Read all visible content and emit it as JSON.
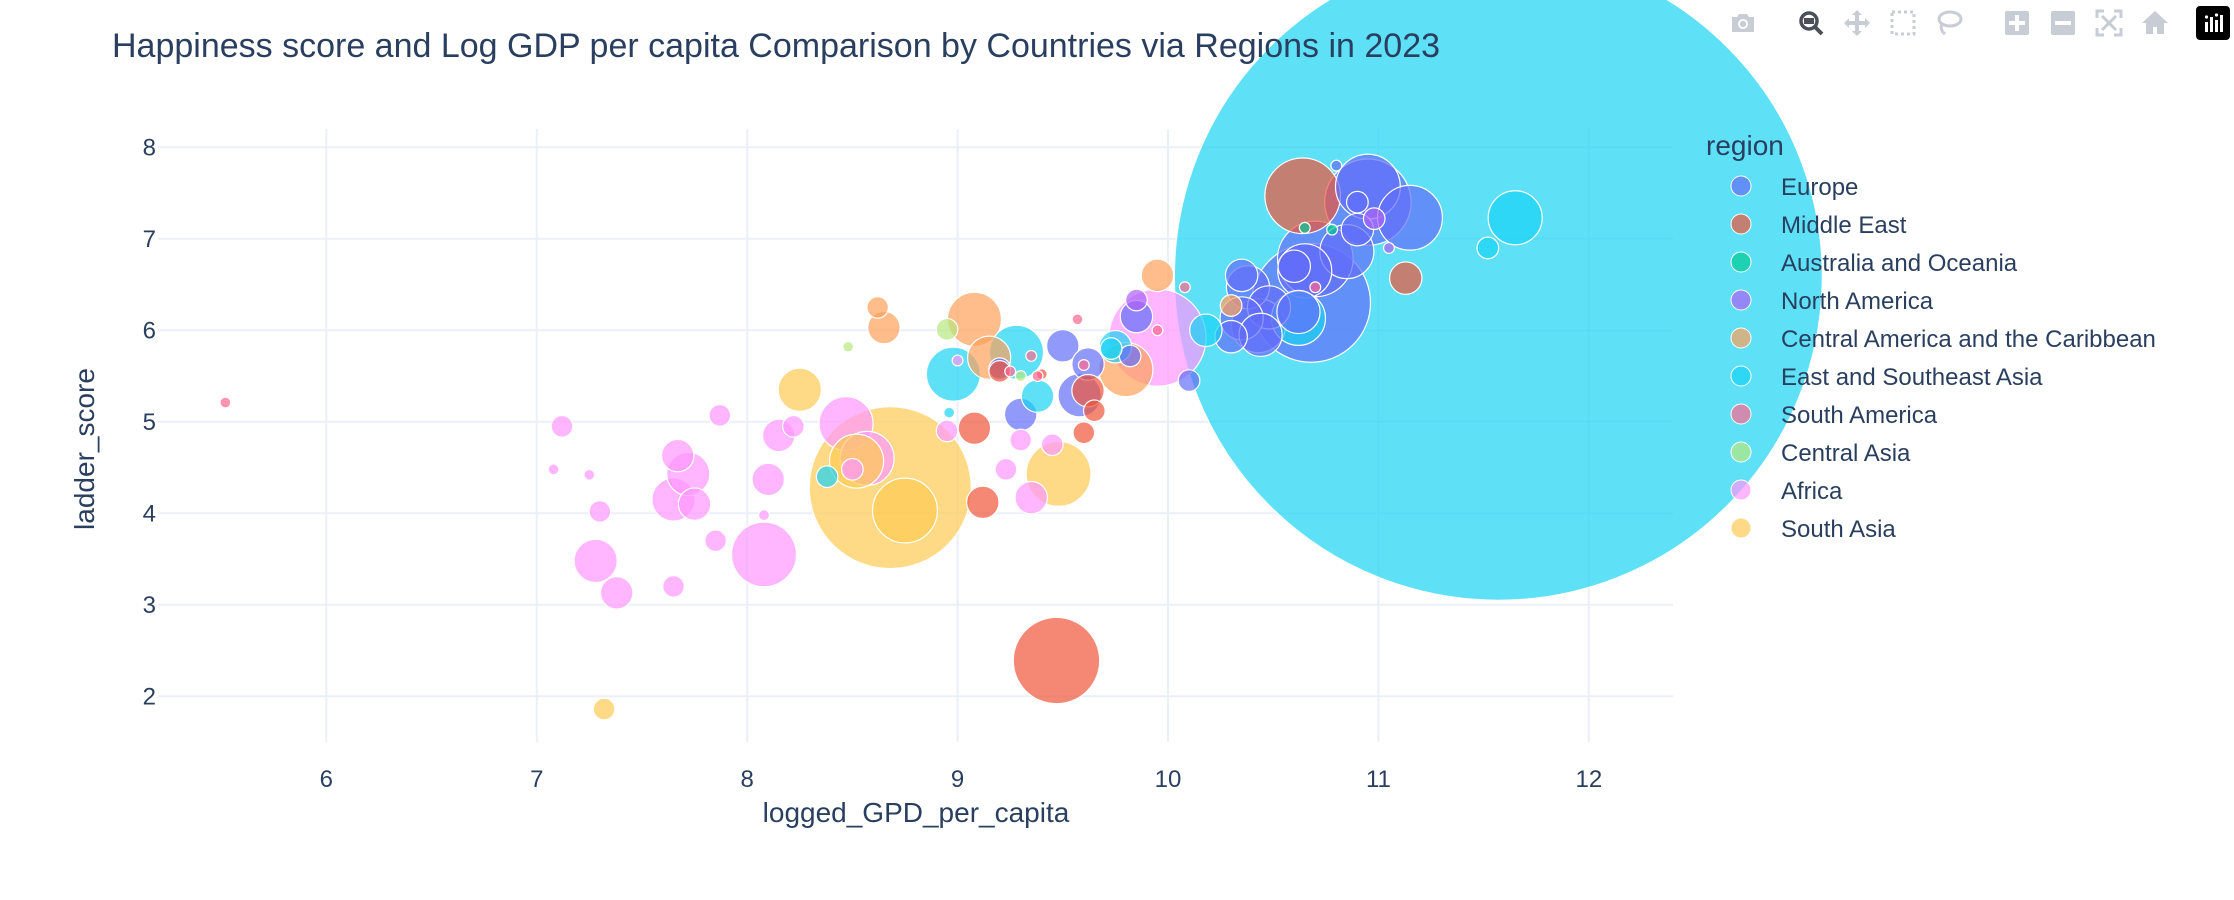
{
  "modebar": {
    "buttons": [
      {
        "name": "camera-icon",
        "active": false
      },
      {
        "name": "zoom-icon",
        "active": true
      },
      {
        "name": "pan-icon",
        "active": false
      },
      {
        "name": "box-select-icon",
        "active": false
      },
      {
        "name": "lasso-select-icon",
        "active": false
      },
      {
        "name": "zoom-in-icon",
        "active": false
      },
      {
        "name": "zoom-out-icon",
        "active": false
      },
      {
        "name": "autoscale-icon",
        "active": false
      },
      {
        "name": "reset-axes-icon",
        "active": false
      },
      {
        "name": "plotly-logo-icon",
        "active": false
      }
    ]
  },
  "chart_data": {
    "type": "scatter",
    "title": "Happiness score and Log GDP per capita Comparison by Countries via Regions in 2023",
    "xlabel": "logged_GPD_per_capita",
    "ylabel": "ladder_score",
    "xlim": [
      5.2,
      12.4
    ],
    "ylim": [
      1.5,
      8.2
    ],
    "xticks": [
      6,
      7,
      8,
      9,
      10,
      11,
      12
    ],
    "yticks": [
      2,
      3,
      4,
      5,
      6,
      7,
      8
    ],
    "grid": true,
    "legend": {
      "title": "region",
      "placement": "right"
    },
    "marker_opacity": 0.7,
    "series": [
      {
        "name": "Europe",
        "color": "#636efa",
        "points": [
          [
            10.8,
            7.8
          ],
          [
            10.95,
            7.57
          ],
          [
            10.9,
            7.4
          ],
          [
            10.95,
            7.4
          ],
          [
            11.15,
            7.23
          ],
          [
            10.9,
            7.1
          ],
          [
            10.85,
            6.86
          ],
          [
            10.7,
            6.78
          ],
          [
            10.65,
            6.65
          ],
          [
            10.6,
            6.7
          ],
          [
            10.35,
            6.6
          ],
          [
            10.38,
            6.47
          ],
          [
            10.48,
            6.25
          ],
          [
            10.35,
            6.13
          ],
          [
            10.43,
            6.05
          ],
          [
            10.3,
            5.93
          ],
          [
            10.44,
            5.95
          ],
          [
            10.62,
            6.2
          ],
          [
            10.68,
            6.3
          ],
          [
            9.85,
            6.15
          ],
          [
            9.82,
            5.72
          ],
          [
            9.5,
            5.83
          ],
          [
            9.62,
            5.63
          ],
          [
            9.58,
            5.29
          ],
          [
            9.3,
            5.08
          ],
          [
            10.1,
            5.45
          ],
          [
            9.2,
            5.58
          ]
        ],
        "sizes": [
          1,
          6,
          2,
          8,
          6,
          3,
          5,
          7,
          5,
          3,
          3,
          4,
          4,
          4,
          5,
          3,
          4,
          4,
          11,
          3,
          2,
          3,
          3,
          4,
          3,
          2,
          2
        ]
      },
      {
        "name": "Middle East",
        "color": "#EF553B",
        "points": [
          [
            10.64,
            7.47
          ],
          [
            11.13,
            6.57
          ],
          [
            9.47,
            2.39
          ],
          [
            9.12,
            4.12
          ],
          [
            9.08,
            4.93
          ],
          [
            9.62,
            5.34
          ],
          [
            9.6,
            4.88
          ],
          [
            9.65,
            5.12
          ],
          [
            9.4,
            5.52
          ],
          [
            9.2,
            5.55
          ]
        ],
        "sizes": [
          7,
          3,
          8,
          3,
          3,
          3,
          2,
          2,
          1,
          2
        ]
      },
      {
        "name": "Australia and Oceania",
        "color": "#00cc96",
        "points": [
          [
            10.65,
            7.12
          ],
          [
            10.78,
            7.1
          ]
        ],
        "sizes": [
          1,
          1
        ]
      },
      {
        "name": "North America",
        "color": "#ab63fa",
        "points": [
          [
            10.98,
            7.22
          ],
          [
            11.05,
            6.9
          ],
          [
            9.85,
            6.33
          ]
        ],
        "sizes": [
          2,
          1,
          2
        ]
      },
      {
        "name": "Central America and the Caribbean",
        "color": "#FFA15A",
        "points": [
          [
            9.95,
            6.6
          ],
          [
            9.08,
            6.12
          ],
          [
            9.15,
            5.7
          ],
          [
            8.62,
            6.25
          ],
          [
            8.65,
            6.03
          ],
          [
            10.3,
            6.27
          ],
          [
            9.8,
            5.57
          ]
        ],
        "sizes": [
          3,
          5,
          4,
          2,
          3,
          2,
          5
        ]
      },
      {
        "name": "East and Southeast Asia",
        "color": "#19d3f3",
        "points": [
          [
            11.57,
            6.59
          ],
          [
            11.65,
            7.23
          ],
          [
            11.52,
            6.9
          ],
          [
            10.62,
            6.13
          ],
          [
            9.28,
            5.76
          ],
          [
            9.75,
            5.82
          ],
          [
            8.98,
            5.52
          ],
          [
            9.38,
            5.28
          ],
          [
            8.38,
            4.4
          ],
          [
            10.18,
            6.0
          ],
          [
            8.96,
            5.1
          ],
          [
            9.73,
            5.8
          ]
        ],
        "sizes": [
          60,
          5,
          2,
          5,
          5,
          3,
          5,
          3,
          2,
          3,
          1,
          2
        ]
      },
      {
        "name": "South America",
        "color": "#FF6692",
        "points": [
          [
            5.52,
            5.21
          ],
          [
            10.7,
            6.47
          ],
          [
            10.08,
            6.47
          ],
          [
            9.57,
            6.12
          ],
          [
            9.95,
            6.0
          ],
          [
            9.25,
            5.55
          ],
          [
            9.35,
            5.72
          ],
          [
            9.38,
            5.5
          ],
          [
            9.6,
            5.62
          ]
        ],
        "sizes": [
          1,
          1,
          1,
          1,
          1,
          1,
          1,
          1,
          1
        ]
      },
      {
        "name": "Central Asia",
        "color": "#B6E880",
        "points": [
          [
            8.95,
            6.01
          ],
          [
            8.48,
            5.82
          ],
          [
            9.3,
            5.5
          ]
        ],
        "sizes": [
          2,
          1,
          1
        ]
      },
      {
        "name": "Africa",
        "color": "#FF97FF",
        "points": [
          [
            9.95,
            5.92
          ],
          [
            8.47,
            4.98
          ],
          [
            8.57,
            4.6
          ],
          [
            8.08,
            3.55
          ],
          [
            7.28,
            3.48
          ],
          [
            7.38,
            3.13
          ],
          [
            7.65,
            4.15
          ],
          [
            7.72,
            4.43
          ],
          [
            7.75,
            4.1
          ],
          [
            8.1,
            4.37
          ],
          [
            7.67,
            4.63
          ],
          [
            7.87,
            5.07
          ],
          [
            8.15,
            4.85
          ],
          [
            8.22,
            4.95
          ],
          [
            7.12,
            4.95
          ],
          [
            7.25,
            4.42
          ],
          [
            7.08,
            4.48
          ],
          [
            7.3,
            4.02
          ],
          [
            7.65,
            3.2
          ],
          [
            7.85,
            3.7
          ],
          [
            8.08,
            3.98
          ],
          [
            8.5,
            4.48
          ],
          [
            8.95,
            4.9
          ],
          [
            9.23,
            4.48
          ],
          [
            9.35,
            4.17
          ],
          [
            9.45,
            4.75
          ],
          [
            9.3,
            4.8
          ],
          [
            9.0,
            5.67
          ]
        ],
        "sizes": [
          9,
          5,
          5,
          6,
          4,
          3,
          4,
          4,
          3,
          3,
          3,
          2,
          3,
          2,
          2,
          1,
          1,
          2,
          2,
          2,
          1,
          2,
          2,
          2,
          3,
          2,
          2,
          1
        ]
      },
      {
        "name": "South Asia",
        "color": "#FECB52",
        "points": [
          [
            8.68,
            4.28
          ],
          [
            8.75,
            4.03
          ],
          [
            8.52,
            4.57
          ],
          [
            9.48,
            4.43
          ],
          [
            8.25,
            5.35
          ],
          [
            7.32,
            1.86
          ]
        ],
        "sizes": [
          15,
          6,
          5,
          6,
          4,
          2
        ]
      }
    ]
  }
}
